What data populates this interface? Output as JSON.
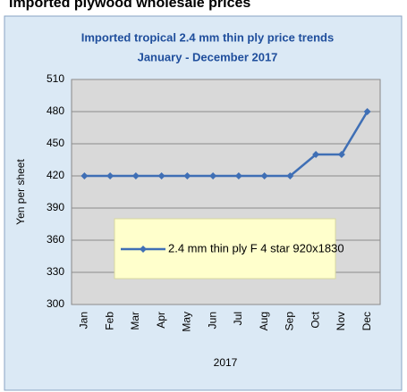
{
  "heading": "Imported plywood wholesale prices",
  "chart_data": {
    "type": "line",
    "title": "Imported tropical 2.4 mm thin ply price trends",
    "subtitle": "January - December 2017",
    "y_label": "Yen per sheet",
    "x_label": "2017",
    "categories": [
      "Jan",
      "Feb",
      "Mar",
      "Apr",
      "May",
      "Jun",
      "Jul",
      "Aug",
      "Sep",
      "Oct",
      "Nov",
      "Dec"
    ],
    "series": [
      {
        "name": "2.4 mm thin ply F 4 star 920x1830",
        "color": "#3f6fb5",
        "values": [
          420,
          420,
          420,
          420,
          420,
          420,
          420,
          420,
          420,
          440,
          440,
          480
        ]
      }
    ],
    "ylim": [
      300,
      510
    ],
    "yticks": [
      300,
      330,
      360,
      390,
      420,
      450,
      480,
      510
    ],
    "grid": true
  }
}
